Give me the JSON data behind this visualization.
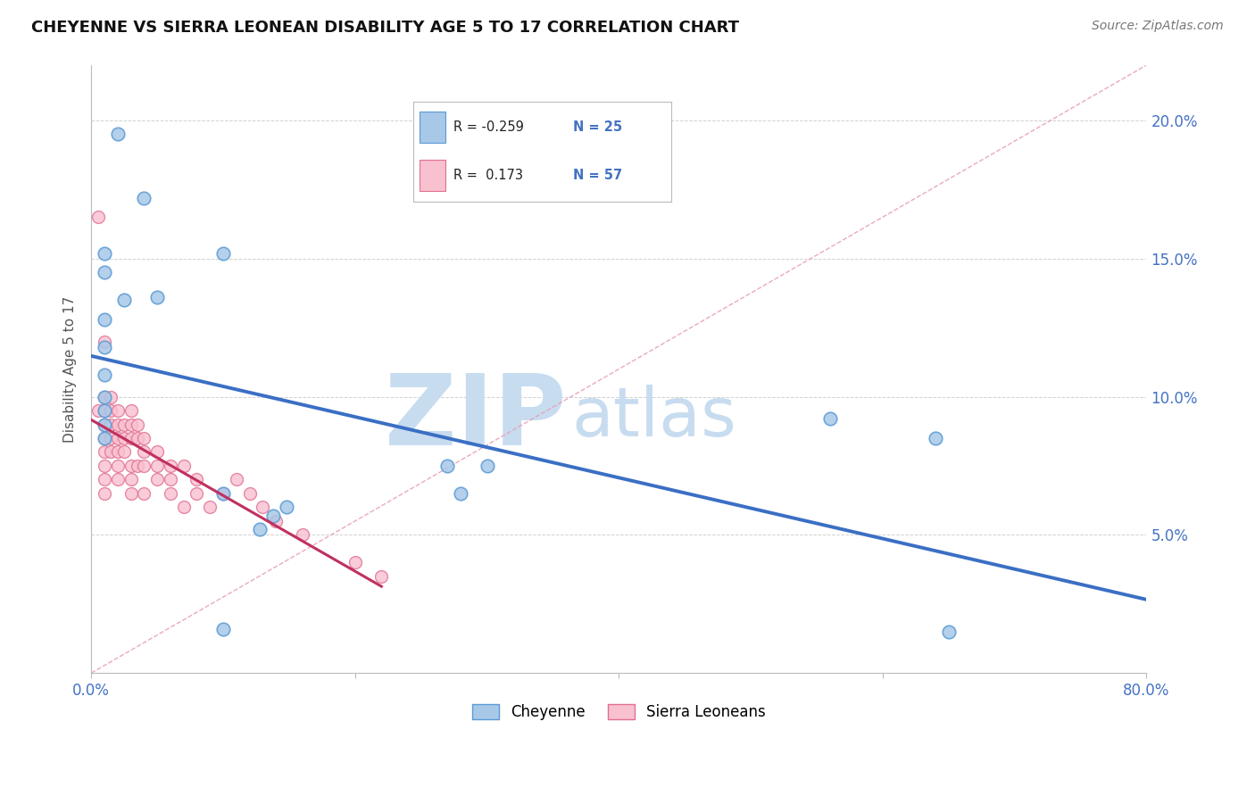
{
  "title": "CHEYENNE VS SIERRA LEONEAN DISABILITY AGE 5 TO 17 CORRELATION CHART",
  "source": "Source: ZipAtlas.com",
  "ylabel": "Disability Age 5 to 17",
  "xlim": [
    0.0,
    0.8
  ],
  "ylim": [
    0.0,
    0.22
  ],
  "xticks": [
    0.0,
    0.2,
    0.4,
    0.6,
    0.8
  ],
  "xtick_labels": [
    "0.0%",
    "",
    "",
    "",
    "80.0%"
  ],
  "yticks": [
    0.0,
    0.05,
    0.1,
    0.15,
    0.2
  ],
  "ytick_labels_right": [
    "",
    "5.0%",
    "10.0%",
    "15.0%",
    "20.0%"
  ],
  "cheyenne_fill": "#A8C8E8",
  "cheyenne_edge": "#5B9BD5",
  "sierra_fill": "#F9C0D0",
  "sierra_edge": "#E07090",
  "cheyenne_line_color": "#3A6FC4",
  "sierra_line_color": "#C03060",
  "diagonal_color": "#E8A0B8",
  "R_cheyenne": -0.259,
  "N_cheyenne": 25,
  "R_sierra": 0.173,
  "N_sierra": 57,
  "cheyenne_x": [
    0.02,
    0.04,
    0.01,
    0.01,
    0.025,
    0.01,
    0.01,
    0.01,
    0.01,
    0.01,
    0.01,
    0.01,
    0.05,
    0.1,
    0.1,
    0.148,
    0.28,
    0.3,
    0.56,
    0.64,
    0.65,
    0.1,
    0.138,
    0.128,
    0.27
  ],
  "cheyenne_y": [
    0.195,
    0.172,
    0.152,
    0.145,
    0.135,
    0.128,
    0.118,
    0.108,
    0.1,
    0.095,
    0.09,
    0.085,
    0.136,
    0.152,
    0.065,
    0.06,
    0.065,
    0.075,
    0.092,
    0.085,
    0.015,
    0.016,
    0.057,
    0.052,
    0.075
  ],
  "sierra_x": [
    0.005,
    0.005,
    0.01,
    0.01,
    0.01,
    0.01,
    0.01,
    0.01,
    0.01,
    0.01,
    0.01,
    0.015,
    0.015,
    0.015,
    0.015,
    0.015,
    0.02,
    0.02,
    0.02,
    0.02,
    0.02,
    0.02,
    0.025,
    0.025,
    0.025,
    0.03,
    0.03,
    0.03,
    0.03,
    0.03,
    0.03,
    0.035,
    0.035,
    0.035,
    0.04,
    0.04,
    0.04,
    0.04,
    0.05,
    0.05,
    0.05,
    0.06,
    0.06,
    0.06,
    0.07,
    0.07,
    0.08,
    0.08,
    0.09,
    0.1,
    0.11,
    0.12,
    0.13,
    0.14,
    0.16,
    0.2,
    0.22
  ],
  "sierra_y": [
    0.165,
    0.095,
    0.12,
    0.1,
    0.095,
    0.09,
    0.085,
    0.08,
    0.075,
    0.07,
    0.065,
    0.1,
    0.095,
    0.09,
    0.085,
    0.08,
    0.095,
    0.09,
    0.085,
    0.08,
    0.075,
    0.07,
    0.09,
    0.085,
    0.08,
    0.095,
    0.09,
    0.085,
    0.075,
    0.07,
    0.065,
    0.09,
    0.085,
    0.075,
    0.085,
    0.08,
    0.075,
    0.065,
    0.08,
    0.075,
    0.07,
    0.075,
    0.07,
    0.065,
    0.075,
    0.06,
    0.07,
    0.065,
    0.06,
    0.065,
    0.07,
    0.065,
    0.06,
    0.055,
    0.05,
    0.04,
    0.035
  ],
  "watermark_zip": "ZIP",
  "watermark_atlas": "atlas",
  "watermark_color_zip": "#C8DCF0",
  "watermark_color_atlas": "#C8DCF0",
  "bg_color": "#FFFFFF",
  "grid_color": "#CCCCCC",
  "axis_color": "#BBBBBB",
  "tick_label_color": "#4472C4",
  "ylabel_color": "#555555",
  "title_color": "#111111",
  "source_color": "#777777",
  "legend_box_color": "#DDDDDD"
}
